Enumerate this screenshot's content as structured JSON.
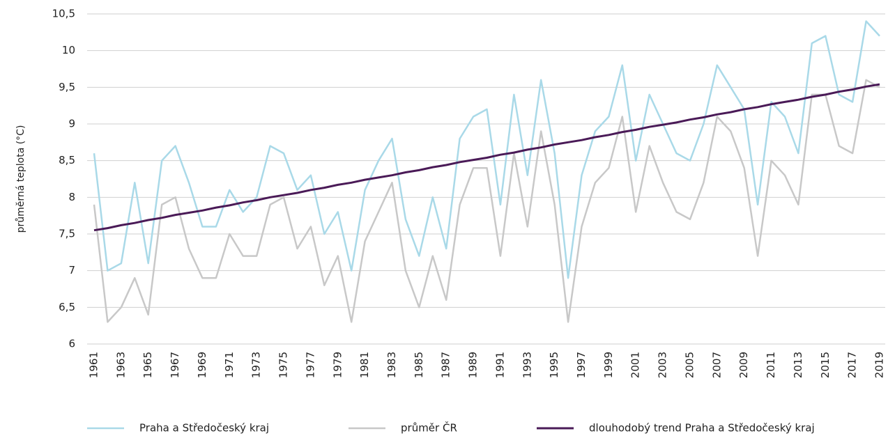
{
  "chart_data": {
    "type": "line",
    "y_label": "průměrná teplota (°C)",
    "categories": [
      "1961",
      null,
      "1963",
      null,
      "1965",
      null,
      "1967",
      null,
      "1969",
      null,
      "1971",
      null,
      "1973",
      null,
      "1975",
      null,
      "1977",
      null,
      "1979",
      null,
      "1981",
      null,
      "1983",
      null,
      "1985",
      null,
      "1987",
      null,
      "1989",
      null,
      "1991",
      null,
      "1993",
      null,
      "1995",
      null,
      "1997",
      null,
      "1999",
      null,
      "2001",
      null,
      "2003",
      null,
      "2005",
      null,
      "2007",
      null,
      "2009",
      null,
      "2011",
      null,
      "2013",
      null,
      "2015",
      null,
      "2017",
      null,
      "2019"
    ],
    "series": [
      {
        "name": "Praha a Středočeský kraj",
        "color": "#a9d9e8",
        "values": [
          8.6,
          7.0,
          7.1,
          8.2,
          7.1,
          8.5,
          8.7,
          8.2,
          7.6,
          7.6,
          8.1,
          7.8,
          8.0,
          8.7,
          8.6,
          8.1,
          8.3,
          7.5,
          7.8,
          7.0,
          8.1,
          8.5,
          8.8,
          7.7,
          7.2,
          8.0,
          7.3,
          8.8,
          9.1,
          9.2,
          7.9,
          9.4,
          8.3,
          9.6,
          8.6,
          6.9,
          8.3,
          8.9,
          9.1,
          9.8,
          8.5,
          9.4,
          9.0,
          8.6,
          8.5,
          9.0,
          9.8,
          9.5,
          9.2,
          7.9,
          9.3,
          9.1,
          8.6,
          10.1,
          10.2,
          9.4,
          9.3,
          10.4,
          10.2
        ]
      },
      {
        "name": "průměr ČR",
        "color": "#c8c8c8",
        "values": [
          7.9,
          6.3,
          6.5,
          6.9,
          6.4,
          7.9,
          8.0,
          7.3,
          6.9,
          6.9,
          7.5,
          7.2,
          7.2,
          7.9,
          8.0,
          7.3,
          7.6,
          6.8,
          7.2,
          6.3,
          7.4,
          7.8,
          8.2,
          7.0,
          6.5,
          7.2,
          6.6,
          7.9,
          8.4,
          8.4,
          7.2,
          8.6,
          7.6,
          8.9,
          7.9,
          6.3,
          7.6,
          8.2,
          8.4,
          9.1,
          7.8,
          8.7,
          8.2,
          7.8,
          7.7,
          8.2,
          9.1,
          8.9,
          8.4,
          7.2,
          8.5,
          8.3,
          7.9,
          9.4,
          9.4,
          8.7,
          8.6,
          9.6,
          9.5
        ]
      },
      {
        "name": "dlouhodobý trend Praha a Středočeský kraj",
        "color": "#4a1a57",
        "values": [
          7.55,
          7.58,
          7.62,
          7.65,
          7.69,
          7.72,
          7.76,
          7.79,
          7.82,
          7.86,
          7.89,
          7.93,
          7.96,
          8.0,
          8.03,
          8.06,
          8.1,
          8.13,
          8.17,
          8.2,
          8.24,
          8.27,
          8.3,
          8.34,
          8.37,
          8.41,
          8.44,
          8.48,
          8.51,
          8.54,
          8.58,
          8.61,
          8.65,
          8.68,
          8.72,
          8.75,
          8.78,
          8.82,
          8.85,
          8.89,
          8.92,
          8.96,
          8.99,
          9.02,
          9.06,
          9.09,
          9.13,
          9.16,
          9.2,
          9.23,
          9.27,
          9.3,
          9.33,
          9.37,
          9.4,
          9.44,
          9.47,
          9.51,
          9.54
        ]
      }
    ],
    "ylim": [
      6,
      10.5
    ],
    "yticks": [
      6,
      {
        "value": 6.5,
        "label": "6,5"
      },
      7,
      {
        "value": 7.5,
        "label": "7,5"
      },
      8,
      {
        "value": 8.5,
        "label": "8,5"
      },
      9,
      {
        "value": 9.5,
        "label": "9,5"
      },
      10,
      {
        "value": 10.5,
        "label": "10,5"
      }
    ],
    "grid": true,
    "legend": "bottom"
  }
}
